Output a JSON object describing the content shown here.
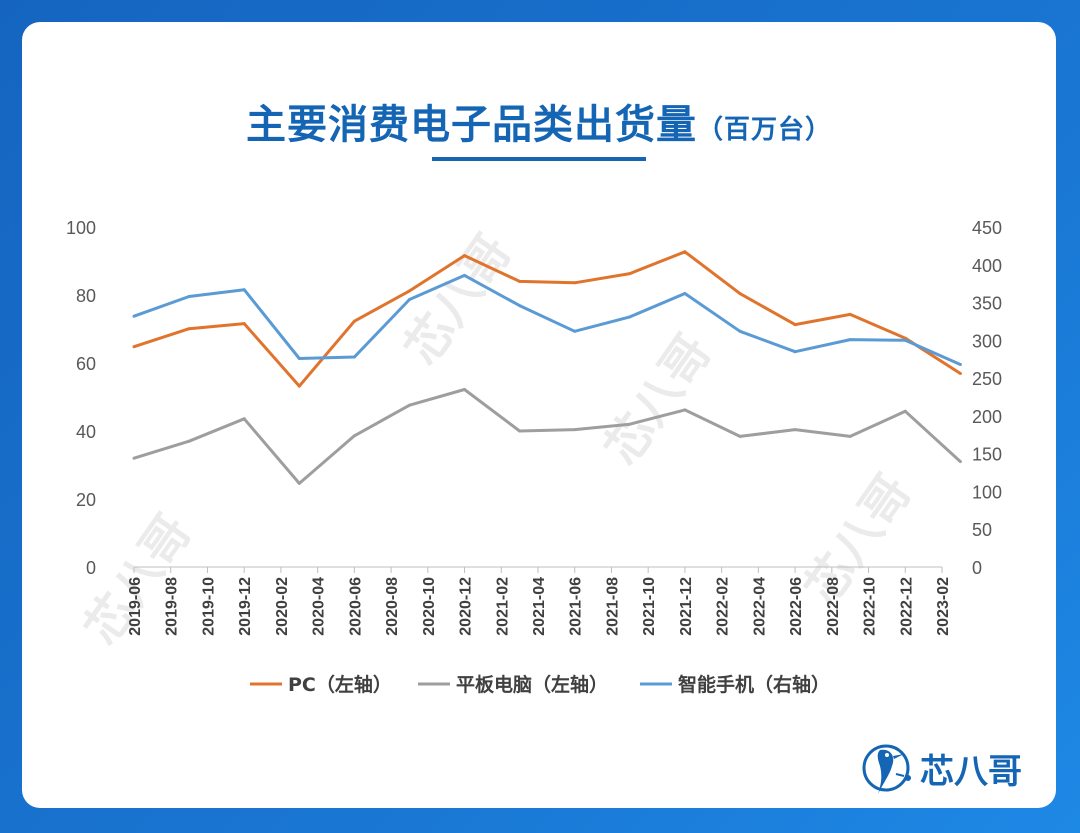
{
  "page": {
    "title_main": "主要消费电子品类出货量",
    "title_unit": "（百万台）",
    "brand": "芯八哥",
    "watermark": "芯八哥"
  },
  "colors": {
    "pc": "#e0742d",
    "tablet": "#9e9e9e",
    "smartphone": "#5b9bd5",
    "accent": "#1565b5"
  },
  "icons": [
    "bird-logo-icon"
  ],
  "chart_data": {
    "type": "line",
    "title": "主要消费电子品类出货量（百万台）",
    "x": [
      "2019-06",
      "2019-08",
      "2019-10",
      "2019-12",
      "2020-02",
      "2020-04",
      "2020-06",
      "2020-08",
      "2020-10",
      "2020-12",
      "2021-02",
      "2021-04",
      "2021-06",
      "2021-08",
      "2021-10",
      "2021-12",
      "2022-02",
      "2022-04",
      "2022-06",
      "2022-08",
      "2022-10",
      "2022-12",
      "2023-02"
    ],
    "y_left": {
      "min": 0,
      "max": 100,
      "ticks": [
        "0",
        "20",
        "40",
        "60",
        "80",
        "100"
      ]
    },
    "y_right": {
      "min": 0,
      "max": 450,
      "ticks": [
        "0",
        "50",
        "100",
        "150",
        "200",
        "250",
        "300",
        "350",
        "400",
        "450"
      ]
    },
    "grid": false,
    "legend_position": "bottom",
    "series": [
      {
        "name": "PC（左轴）",
        "axis": "left",
        "color": "#e0742d",
        "points": [
          [
            "2019-06",
            64.8
          ],
          [
            "2019-09",
            70.1
          ],
          [
            "2019-12",
            71.6
          ],
          [
            "2020-03",
            53.2
          ],
          [
            "2020-06",
            72.3
          ],
          [
            "2020-09",
            81.2
          ],
          [
            "2020-12",
            91.6
          ],
          [
            "2021-03",
            84.0
          ],
          [
            "2021-06",
            83.6
          ],
          [
            "2021-09",
            86.3
          ],
          [
            "2021-12",
            92.7
          ],
          [
            "2022-03",
            80.4
          ],
          [
            "2022-06",
            71.3
          ],
          [
            "2022-09",
            74.3
          ],
          [
            "2022-12",
            67.3
          ],
          [
            "2023-03",
            56.9
          ]
        ]
      },
      {
        "name": "平板电脑（左轴）",
        "axis": "left",
        "color": "#9e9e9e",
        "points": [
          [
            "2019-06",
            32.0
          ],
          [
            "2019-09",
            37.0
          ],
          [
            "2019-12",
            43.6
          ],
          [
            "2020-03",
            24.6
          ],
          [
            "2020-06",
            38.6
          ],
          [
            "2020-09",
            47.6
          ],
          [
            "2020-12",
            52.2
          ],
          [
            "2021-03",
            40.0
          ],
          [
            "2021-06",
            40.4
          ],
          [
            "2021-09",
            42.0
          ],
          [
            "2021-12",
            46.2
          ],
          [
            "2022-03",
            38.4
          ],
          [
            "2022-06",
            40.4
          ],
          [
            "2022-09",
            38.4
          ],
          [
            "2022-12",
            45.8
          ],
          [
            "2023-03",
            31.0
          ]
        ]
      },
      {
        "name": "智能手机（右轴）",
        "axis": "right",
        "color": "#5b9bd5",
        "points": [
          [
            "2019-06",
            332
          ],
          [
            "2019-09",
            358
          ],
          [
            "2019-12",
            367
          ],
          [
            "2020-03",
            276
          ],
          [
            "2020-06",
            278
          ],
          [
            "2020-09",
            354
          ],
          [
            "2020-12",
            386
          ],
          [
            "2021-03",
            346
          ],
          [
            "2021-06",
            312
          ],
          [
            "2021-09",
            331
          ],
          [
            "2021-12",
            362
          ],
          [
            "2022-03",
            312
          ],
          [
            "2022-06",
            285
          ],
          [
            "2022-09",
            301
          ],
          [
            "2022-12",
            300
          ],
          [
            "2023-03",
            268
          ]
        ]
      }
    ]
  }
}
